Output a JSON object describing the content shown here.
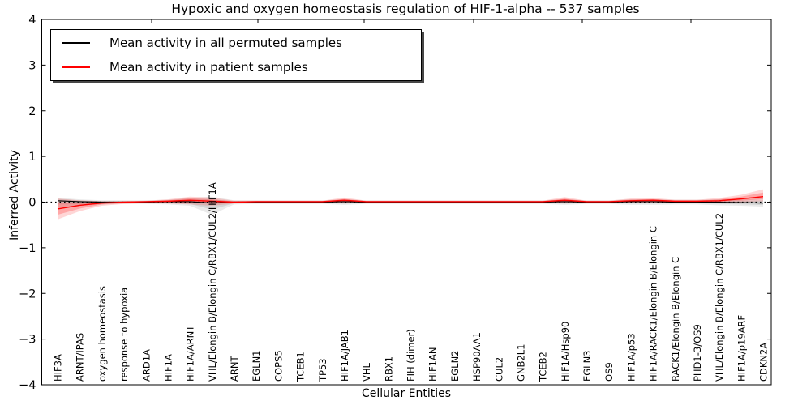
{
  "figure": {
    "title": "Hypoxic and oxygen homeostasis regulation of HIF-1-alpha -- 537 samples"
  },
  "legend": {
    "items": [
      {
        "label": "Mean activity in all permuted samples",
        "color": "#000000"
      },
      {
        "label": "Mean activity in patient samples",
        "color": "#ff0000"
      }
    ]
  },
  "chart_data": {
    "type": "line",
    "title": "Hypoxic and oxygen homeostasis regulation of HIF-1-alpha -- 537 samples",
    "xlabel": "Cellular Entities",
    "ylabel": "Inferred Activity",
    "ylim": [
      -4,
      4
    ],
    "yticks": [
      4,
      3,
      2,
      1,
      0,
      -1,
      -2,
      -3,
      -4
    ],
    "grid": false,
    "legend_position": "upper left",
    "zero_reference_line": "dotted black at y=0",
    "x_tick_labels_rotation": 90,
    "categories": [
      "HIF3A",
      "ARNT/IPAS",
      "oxygen homeostasis",
      "response to hypoxia",
      "ARD1A",
      "HIF1A",
      "HIF1A/ARNT",
      "VHL/Elongin B/Elongin C/RBX1/CUL2/HIF1A",
      "ARNT",
      "EGLN1",
      "COPS5",
      "TCEB1",
      "TP53",
      "HIF1A/JAB1",
      "VHL",
      "RBX1",
      "FIH (dimer)",
      "HIF1AN",
      "EGLN2",
      "HSP90AA1",
      "CUL2",
      "GNB2L1",
      "TCEB2",
      "HIF1A/Hsp90",
      "EGLN3",
      "OS9",
      "HIF1A/p53",
      "HIF1A/RACK1/Elongin B/Elongin C",
      "RACK1/Elongin B/Elongin C",
      "PHD1-3/OS9",
      "VHL/Elongin B/Elongin C/RBX1/CUL2",
      "HIF1A/p19ARF",
      "CDKN2A"
    ],
    "series": [
      {
        "name": "Mean activity in all permuted samples",
        "color": "#000000",
        "band_color": "#000000",
        "values": [
          0.03,
          0.01,
          0.0,
          0.0,
          0.0,
          0.01,
          0.01,
          -0.02,
          0.0,
          0.0,
          0.0,
          0.0,
          0.0,
          0.01,
          0.0,
          0.0,
          0.0,
          0.0,
          0.0,
          0.0,
          0.0,
          0.0,
          0.0,
          0.01,
          0.0,
          0.0,
          0.01,
          0.01,
          0.0,
          0.0,
          0.0,
          -0.01,
          -0.02
        ],
        "band_upper": [
          0.1,
          0.06,
          0.04,
          0.04,
          0.04,
          0.05,
          0.09,
          0.12,
          0.04,
          0.04,
          0.04,
          0.04,
          0.04,
          0.06,
          0.04,
          0.04,
          0.04,
          0.04,
          0.04,
          0.04,
          0.04,
          0.04,
          0.04,
          0.06,
          0.04,
          0.04,
          0.06,
          0.06,
          0.05,
          0.05,
          0.06,
          0.06,
          0.08
        ],
        "band_lower": [
          -0.12,
          -0.08,
          -0.05,
          -0.04,
          -0.04,
          -0.05,
          -0.08,
          -0.28,
          -0.05,
          -0.04,
          -0.04,
          -0.04,
          -0.04,
          -0.06,
          -0.04,
          -0.04,
          -0.04,
          -0.04,
          -0.04,
          -0.04,
          -0.04,
          -0.04,
          -0.04,
          -0.06,
          -0.04,
          -0.04,
          -0.06,
          -0.06,
          -0.05,
          -0.05,
          -0.07,
          -0.08,
          -0.1
        ]
      },
      {
        "name": "Mean activity in patient samples",
        "color": "#ff0000",
        "band_color": "#ff0000",
        "values": [
          -0.15,
          -0.07,
          -0.02,
          0.0,
          0.01,
          0.02,
          0.04,
          0.02,
          0.0,
          0.01,
          0.01,
          0.01,
          0.01,
          0.04,
          0.01,
          0.01,
          0.01,
          0.01,
          0.01,
          0.01,
          0.01,
          0.01,
          0.01,
          0.04,
          0.01,
          0.01,
          0.03,
          0.04,
          0.02,
          0.02,
          0.03,
          0.07,
          0.12
        ],
        "band_upper": [
          0.08,
          0.04,
          0.02,
          0.02,
          0.03,
          0.06,
          0.12,
          0.1,
          0.03,
          0.03,
          0.03,
          0.03,
          0.03,
          0.1,
          0.03,
          0.03,
          0.03,
          0.03,
          0.03,
          0.03,
          0.03,
          0.03,
          0.03,
          0.11,
          0.03,
          0.03,
          0.08,
          0.09,
          0.05,
          0.05,
          0.09,
          0.16,
          0.28
        ],
        "band_lower": [
          -0.38,
          -0.2,
          -0.08,
          -0.04,
          -0.02,
          -0.03,
          -0.05,
          -0.08,
          -0.03,
          -0.02,
          -0.02,
          -0.02,
          -0.02,
          -0.03,
          -0.02,
          -0.02,
          -0.02,
          -0.02,
          -0.02,
          -0.02,
          -0.02,
          -0.02,
          -0.02,
          -0.03,
          -0.02,
          -0.02,
          -0.02,
          -0.02,
          -0.02,
          -0.02,
          -0.01,
          0.0,
          0.02
        ]
      }
    ]
  }
}
